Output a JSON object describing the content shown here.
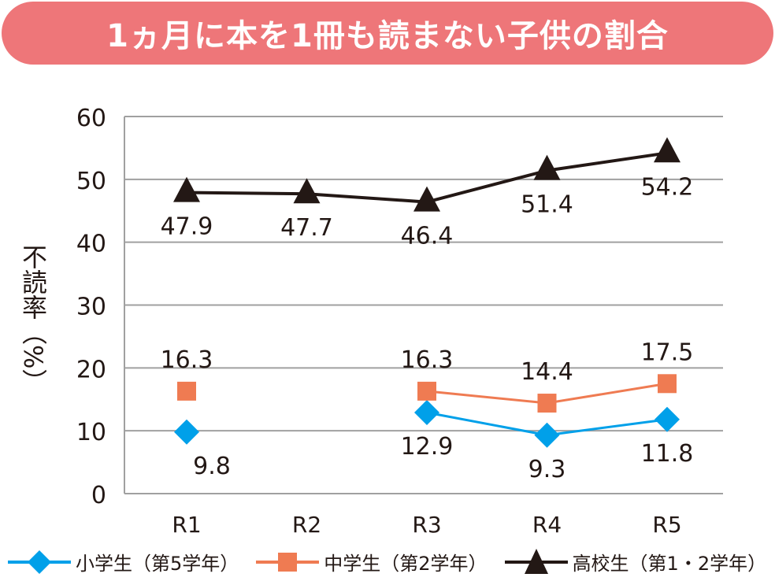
{
  "title": "1ヵ月に本を1冊も読まない子供の割合",
  "chart_data": {
    "type": "line",
    "ylabel": "不読率（%）",
    "ylim": [
      0,
      60
    ],
    "yticks": [
      0,
      10,
      20,
      30,
      40,
      50,
      60
    ],
    "categories": [
      "R1",
      "R2",
      "R3",
      "R4",
      "R5"
    ],
    "grid": true,
    "legend_position": "bottom",
    "series": [
      {
        "name": "小学生（第5学年）",
        "color": "#00a0e9",
        "marker": "diamond",
        "values": [
          9.8,
          null,
          12.9,
          9.3,
          11.8
        ],
        "label_pos": "below"
      },
      {
        "name": "中学生（第2学年）",
        "color": "#ef7b52",
        "marker": "square",
        "values": [
          16.3,
          null,
          16.3,
          14.4,
          17.5
        ],
        "label_pos": "above"
      },
      {
        "name": "高校生（第1・2学年）",
        "color": "#231815",
        "marker": "triangle",
        "values": [
          47.9,
          47.7,
          46.4,
          51.4,
          54.2
        ],
        "label_pos": "below"
      }
    ]
  }
}
